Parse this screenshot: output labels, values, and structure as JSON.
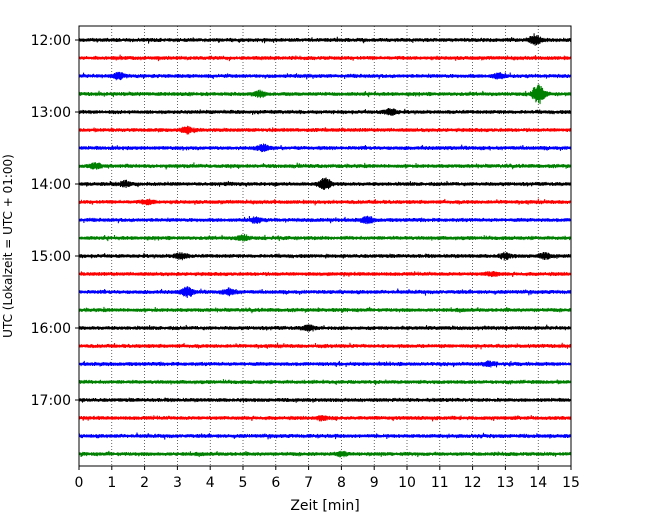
{
  "chart_data": {
    "type": "line",
    "title": "",
    "xlabel": "Zeit  [min]",
    "ylabel": "UTC (Lokalzeit = UTC + 01:00)",
    "xlim": [
      0,
      15
    ],
    "x_ticks": [
      "0",
      "1",
      "2",
      "3",
      "4",
      "5",
      "6",
      "7",
      "8",
      "9",
      "10",
      "11",
      "12",
      "13",
      "14",
      "15"
    ],
    "y_ticks": [
      "12:00",
      "13:00",
      "14:00",
      "15:00",
      "16:00",
      "17:00"
    ],
    "grid": {
      "x": true,
      "y": false,
      "style": "dotted"
    },
    "trace_interval_minutes": 15,
    "trace_colors": [
      "#000000",
      "#ff0000",
      "#0000ff",
      "#008000"
    ],
    "series": [
      {
        "start": "12:00",
        "color": "#000000",
        "bursts": [
          [
            13.9,
            0.9
          ]
        ]
      },
      {
        "start": "12:15",
        "color": "#ff0000",
        "bursts": []
      },
      {
        "start": "12:30",
        "color": "#0000ff",
        "bursts": [
          [
            1.2,
            0.6
          ],
          [
            12.8,
            0.5
          ]
        ]
      },
      {
        "start": "12:45",
        "color": "#008000",
        "bursts": [
          [
            5.5,
            0.6
          ],
          [
            14.0,
            1.8
          ]
        ]
      },
      {
        "start": "13:00",
        "color": "#000000",
        "bursts": [
          [
            9.5,
            0.6
          ]
        ]
      },
      {
        "start": "13:15",
        "color": "#ff0000",
        "bursts": [
          [
            3.3,
            0.6
          ]
        ]
      },
      {
        "start": "13:30",
        "color": "#0000ff",
        "bursts": [
          [
            5.6,
            0.7
          ]
        ]
      },
      {
        "start": "13:45",
        "color": "#008000",
        "bursts": [
          [
            0.5,
            0.5
          ]
        ]
      },
      {
        "start": "14:00",
        "color": "#000000",
        "bursts": [
          [
            7.5,
            1.1
          ],
          [
            1.4,
            0.5
          ]
        ]
      },
      {
        "start": "14:15",
        "color": "#ff0000",
        "bursts": [
          [
            2.1,
            0.4
          ]
        ]
      },
      {
        "start": "14:30",
        "color": "#0000ff",
        "bursts": [
          [
            5.4,
            0.5
          ],
          [
            8.8,
            0.6
          ]
        ]
      },
      {
        "start": "14:45",
        "color": "#008000",
        "bursts": [
          [
            5.0,
            0.5
          ]
        ]
      },
      {
        "start": "15:00",
        "color": "#000000",
        "bursts": [
          [
            3.1,
            0.6
          ],
          [
            13.0,
            0.5
          ],
          [
            14.2,
            0.5
          ]
        ]
      },
      {
        "start": "15:15",
        "color": "#ff0000",
        "bursts": [
          [
            12.6,
            0.4
          ]
        ]
      },
      {
        "start": "15:30",
        "color": "#0000ff",
        "bursts": [
          [
            3.3,
            0.9
          ],
          [
            4.6,
            0.6
          ]
        ]
      },
      {
        "start": "15:45",
        "color": "#008000",
        "bursts": []
      },
      {
        "start": "16:00",
        "color": "#000000",
        "bursts": [
          [
            7.0,
            0.5
          ]
        ]
      },
      {
        "start": "16:15",
        "color": "#ff0000",
        "bursts": []
      },
      {
        "start": "16:30",
        "color": "#0000ff",
        "bursts": [
          [
            12.5,
            0.4
          ]
        ]
      },
      {
        "start": "16:45",
        "color": "#008000",
        "bursts": []
      },
      {
        "start": "17:00",
        "color": "#000000",
        "bursts": []
      },
      {
        "start": "17:15",
        "color": "#ff0000",
        "bursts": [
          [
            7.4,
            0.4
          ]
        ]
      },
      {
        "start": "17:30",
        "color": "#0000ff",
        "bursts": []
      },
      {
        "start": "17:45",
        "color": "#008000",
        "bursts": [
          [
            8.0,
            0.4
          ]
        ]
      }
    ]
  }
}
